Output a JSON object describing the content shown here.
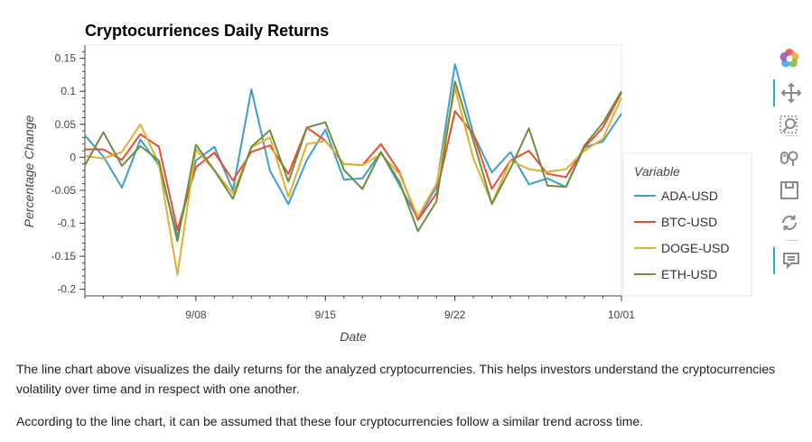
{
  "chart_data": {
    "type": "line",
    "title": "Cryptocurriences Daily Returns",
    "xlabel": "Date",
    "ylabel": "Percentage Change",
    "x": [
      "9/02",
      "9/03",
      "9/04",
      "9/05",
      "9/06",
      "9/07",
      "9/08",
      "9/09",
      "9/10",
      "9/11",
      "9/12",
      "9/13",
      "9/14",
      "9/15",
      "9/16",
      "9/17",
      "9/18",
      "9/19",
      "9/20",
      "9/21",
      "9/22",
      "9/23",
      "9/24",
      "9/25",
      "9/26",
      "9/27",
      "9/28",
      "9/29",
      "9/30",
      "10/01"
    ],
    "x_ticks": [
      "9/08",
      "9/15",
      "9/22",
      "10/01"
    ],
    "y_ticks": [
      "0.15",
      "0.1",
      "0.05",
      "0",
      "-0.05",
      "-0.1",
      "-0.15",
      "-0.2"
    ],
    "ylim": [
      -0.21,
      0.17
    ],
    "grid": false,
    "legend_title": "Variable",
    "legend_position": "right",
    "series": [
      {
        "name": "ADA-USD",
        "color": "#3b9fd1",
        "values": [
          0.033,
          0.001,
          -0.046,
          0.027,
          -0.012,
          -0.12,
          -0.005,
          0.016,
          -0.05,
          0.103,
          -0.02,
          -0.071,
          -0.004,
          0.042,
          -0.034,
          -0.032,
          0.008,
          -0.042,
          -0.093,
          -0.045,
          0.141,
          0.035,
          -0.023,
          0.008,
          -0.041,
          -0.032,
          -0.045,
          0.015,
          0.024,
          0.066
        ]
      },
      {
        "name": "BTC-USD",
        "color": "#ee4a2d",
        "values": [
          0.012,
          0.012,
          -0.004,
          0.035,
          0.016,
          -0.11,
          -0.015,
          0.007,
          -0.035,
          0.008,
          0.018,
          -0.025,
          0.045,
          0.025,
          -0.01,
          -0.012,
          0.02,
          -0.022,
          -0.095,
          -0.055,
          0.07,
          0.035,
          -0.048,
          -0.005,
          0.01,
          -0.025,
          -0.03,
          0.015,
          0.045,
          0.098
        ]
      },
      {
        "name": "DOGE-USD",
        "color": "#e2b030",
        "values": [
          0.002,
          -0.002,
          0.008,
          0.05,
          -0.01,
          -0.178,
          0.012,
          -0.02,
          -0.055,
          0.015,
          0.03,
          -0.06,
          0.02,
          0.025,
          -0.01,
          -0.012,
          0.005,
          -0.025,
          -0.09,
          -0.04,
          0.105,
          -0.002,
          -0.07,
          -0.005,
          -0.018,
          -0.022,
          -0.018,
          0.01,
          0.028,
          0.09
        ]
      },
      {
        "name": "ETH-USD",
        "color": "#6b8f3f",
        "values": [
          -0.012,
          0.038,
          -0.013,
          0.017,
          -0.005,
          -0.127,
          0.019,
          -0.02,
          -0.063,
          0.016,
          0.041,
          -0.037,
          0.045,
          0.053,
          -0.019,
          -0.048,
          0.008,
          -0.037,
          -0.112,
          -0.067,
          0.115,
          0.025,
          -0.071,
          -0.017,
          0.044,
          -0.043,
          -0.045,
          0.018,
          0.052,
          0.1
        ]
      }
    ]
  },
  "toolbar": {
    "tools": [
      {
        "icon": "bokeh-logo-icon",
        "active": false
      },
      {
        "icon": "pan-icon",
        "active": true
      },
      {
        "icon": "box-zoom-icon",
        "active": false
      },
      {
        "icon": "wheel-zoom-icon",
        "active": false
      },
      {
        "icon": "save-icon",
        "active": false
      },
      {
        "icon": "reset-icon",
        "active": false
      },
      {
        "icon": "hover-icon",
        "active": true
      }
    ]
  },
  "text": {
    "paragraph1": "The line chart above visualizes the daily returns for the analyzed cryptocurrencies. This helps investors understand the cryptocurrencies volatility over time and in respect with one another.",
    "paragraph2": "According to the line chart, it can be assumed that these four cryptocurrencies follow a similar trend across time."
  }
}
